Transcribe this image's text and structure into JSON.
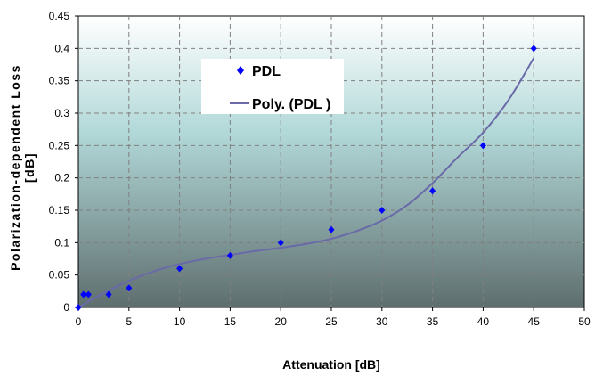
{
  "chart_data": {
    "type": "scatter",
    "xlabel": "Attenuation [dB]",
    "ylabel_line1": "Polarization-dependent Loss",
    "ylabel_line2": "[dB]",
    "xlim": [
      0,
      50
    ],
    "ylim": [
      0,
      0.45
    ],
    "x_ticks": [
      "0",
      "5",
      "10",
      "15",
      "20",
      "25",
      "30",
      "35",
      "40",
      "45",
      "50"
    ],
    "y_ticks": [
      "0",
      "0.05",
      "0.1",
      "0.15",
      "0.2",
      "0.25",
      "0.3",
      "0.35",
      "0.4",
      "0.45"
    ],
    "grid": true,
    "legend_position": "top-center",
    "series": [
      {
        "name": "PDL",
        "kind": "markers",
        "marker": "diamond",
        "color": "#0000FF",
        "x": [
          0,
          0.5,
          1,
          3,
          5,
          10,
          15,
          20,
          25,
          30,
          35,
          40,
          45
        ],
        "y": [
          0,
          0.02,
          0.02,
          0.02,
          0.03,
          0.06,
          0.08,
          0.1,
          0.12,
          0.15,
          0.18,
          0.25,
          0.4
        ]
      },
      {
        "name": "Poly. (PDL )",
        "kind": "trendline",
        "color": "#6A6AA8",
        "x": [
          0,
          2.5,
          5,
          7.5,
          10,
          12.5,
          15,
          17.5,
          20,
          22.5,
          25,
          27.5,
          30,
          32.5,
          35,
          37.5,
          40,
          42.5,
          45
        ],
        "y": [
          0,
          0.022,
          0.041,
          0.056,
          0.067,
          0.075,
          0.081,
          0.087,
          0.092,
          0.098,
          0.106,
          0.118,
          0.134,
          0.158,
          0.192,
          0.232,
          0.27,
          0.32,
          0.385
        ]
      }
    ],
    "colors": {
      "plot_top": "#FFFFFF",
      "plot_upper": "#B2D8D8",
      "plot_lower": "#5E6E6E",
      "grid": "#808080",
      "legend_bg": "#FFFFFF"
    }
  }
}
